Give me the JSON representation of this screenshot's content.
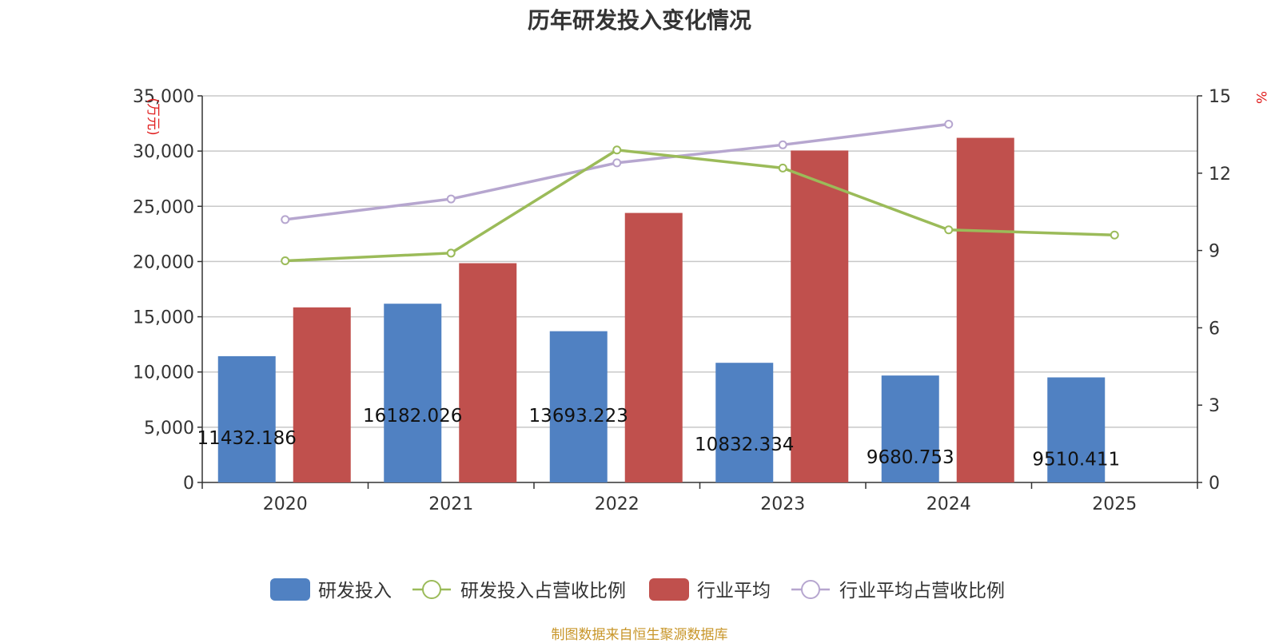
{
  "colors": {
    "rd_bar": "#5081c2",
    "industry_bar": "#c0504d",
    "rd_ratio_line": "#9bbb59",
    "industry_ratio_line": "#b6a6cf",
    "unit_text": "#e02020",
    "source_text": "#c8962a"
  },
  "chart_data": {
    "type": "bar",
    "title": "历年研发投入变化情况",
    "categories": [
      "2020",
      "2021",
      "2022",
      "2023",
      "2024",
      "2025"
    ],
    "left_axis": {
      "unit_label": "(万元)",
      "range": [
        0,
        35000
      ],
      "ticks": [
        "0",
        "5,000",
        "10,000",
        "15,000",
        "20,000",
        "25,000",
        "30,000",
        "35,000"
      ],
      "grid": true
    },
    "right_axis": {
      "unit_label": "%",
      "range": [
        0,
        15
      ],
      "ticks": [
        "0",
        "3",
        "6",
        "9",
        "12",
        "15"
      ]
    },
    "series": [
      {
        "name": "研发投入",
        "type": "bar",
        "axis": "left",
        "values": [
          11432.186,
          16182.026,
          13693.223,
          10832.334,
          9680.753,
          9510.411
        ],
        "labels": [
          "11432.186",
          "16182.026",
          "13693.223",
          "10832.334",
          "9680.753",
          "9510.411"
        ]
      },
      {
        "name": "研发投入占营收比例",
        "type": "line",
        "axis": "right",
        "values": [
          8.6,
          8.9,
          12.9,
          12.2,
          9.8,
          9.6
        ]
      },
      {
        "name": "行业平均",
        "type": "bar",
        "axis": "left",
        "values": [
          15850,
          19850,
          24400,
          30050,
          31200,
          null
        ]
      },
      {
        "name": "行业平均占营收比例",
        "type": "line",
        "axis": "right",
        "values": [
          10.2,
          11.0,
          12.4,
          13.1,
          13.9,
          null
        ]
      }
    ],
    "legend_position": "bottom"
  },
  "footer": {
    "source": "制图数据来自恒生聚源数据库"
  }
}
